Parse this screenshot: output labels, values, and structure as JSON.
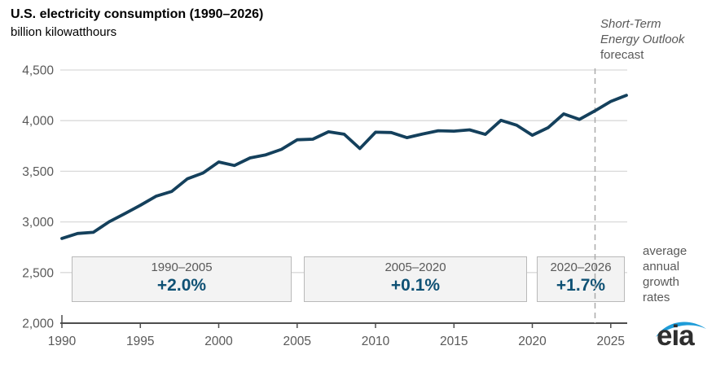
{
  "header": {
    "title": "U.S. electricity consumption (1990–2026)",
    "subtitle": "billion kilowatthours"
  },
  "annotations": {
    "steo_line1": "Short-Term",
    "steo_line2": "Energy Outlook",
    "steo_line3": "forecast",
    "growth_note": "average annual growth rates"
  },
  "growth_boxes": [
    {
      "period": "1990–2005",
      "rate": "+2.0%"
    },
    {
      "period": "2005–2020",
      "rate": "+0.1%"
    },
    {
      "period": "2020–2026",
      "rate": "+1.7%"
    }
  ],
  "logo": {
    "text": "eia"
  },
  "colors": {
    "line": "#14405c",
    "rate_text": "#0f5174",
    "axis_text": "#595959",
    "axis_line": "#4d4d4d",
    "gridline": "#d9d9d9",
    "forecast_line": "#ababab",
    "box_bg": "#f3f3f3",
    "box_border": "#b9b9b9",
    "logo_blue": "#1e9cd8"
  },
  "chart_data": {
    "type": "line",
    "title": "U.S. electricity consumption (1990–2026)",
    "ylabel": "billion kilowatthours",
    "series_name": "U.S. electricity consumption",
    "x": [
      1990,
      1991,
      1992,
      1993,
      1994,
      1995,
      1996,
      1997,
      1998,
      1999,
      2000,
      2001,
      2002,
      2003,
      2004,
      2005,
      2006,
      2007,
      2008,
      2009,
      2010,
      2011,
      2012,
      2013,
      2014,
      2015,
      2016,
      2017,
      2018,
      2019,
      2020,
      2021,
      2022,
      2023,
      2024,
      2025,
      2026
    ],
    "values": [
      2837,
      2886,
      2897,
      3000,
      3080,
      3164,
      3253,
      3301,
      3425,
      3483,
      3592,
      3557,
      3632,
      3662,
      3716,
      3811,
      3817,
      3890,
      3866,
      3724,
      3886,
      3883,
      3832,
      3868,
      3900,
      3896,
      3909,
      3864,
      4003,
      3955,
      3856,
      3930,
      4067,
      4012,
      4097,
      4190,
      4250
    ],
    "ylim": [
      2000,
      4500
    ],
    "ytick_step": 500,
    "xticks": [
      1990,
      1995,
      2000,
      2005,
      2010,
      2015,
      2020,
      2025
    ],
    "forecast_start_x": 2024,
    "grid": "horizontal",
    "legend": "none",
    "average_annual_growth": [
      {
        "period": "1990–2005",
        "rate_pct": 2.0
      },
      {
        "period": "2005–2020",
        "rate_pct": 0.1
      },
      {
        "period": "2020–2026",
        "rate_pct": 1.7
      }
    ]
  }
}
